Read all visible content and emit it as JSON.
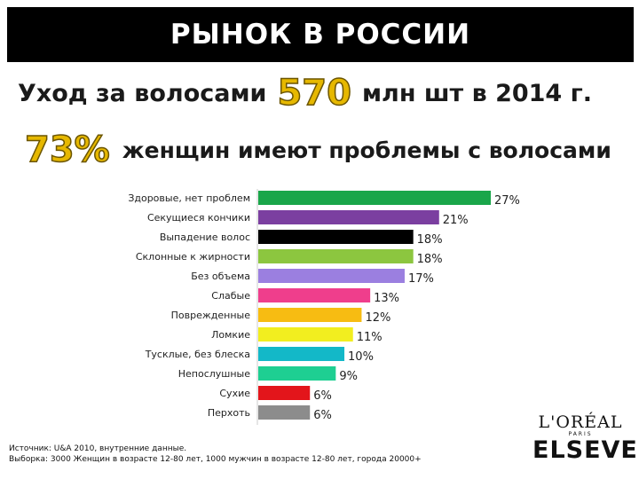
{
  "header": {
    "title": "РЫНОК В РОССИИ"
  },
  "headline1": {
    "prefix": "Уход за волосами",
    "number": "570",
    "suffix": "млн шт в 2014 г."
  },
  "headline2": {
    "number": "73%",
    "text": "женщин имеют проблемы с волосами"
  },
  "chart_data": {
    "type": "bar",
    "orientation": "horizontal",
    "title": "",
    "xlabel": "",
    "ylabel": "",
    "categories": [
      "Здоровые, нет проблем",
      "Секущиеся кончики",
      "Выпадение волос",
      "Склонные к жирности",
      "Без объема",
      "Слабые",
      "Поврежденные",
      "Ломкие",
      "Тусклые, без блеска",
      "Непослушные",
      "Сухие",
      "Перхоть"
    ],
    "values": [
      27,
      21,
      18,
      18,
      17,
      13,
      12,
      11,
      10,
      9,
      6,
      6
    ],
    "value_labels": [
      "27%",
      "21%",
      "18%",
      "18%",
      "17%",
      "13%",
      "12%",
      "11%",
      "10%",
      "9%",
      "6%",
      "6%"
    ],
    "colors": [
      "#1aa64a",
      "#7b3fa0",
      "#000000",
      "#8cc63f",
      "#9b7fe0",
      "#ef3e8c",
      "#f7bc12",
      "#f2ee1f",
      "#13b8c8",
      "#1ecf92",
      "#e3151b",
      "#8c8c8c"
    ],
    "xlim": [
      0,
      27
    ]
  },
  "footnote": {
    "line1": "Источник: U&A 2010, внутренние данные.",
    "line2": "Выборка: 3000 Женщин в возрасте 12-80 лет, 1000 мужчин в возрасте 12-80 лет, города 20000+"
  },
  "logo": {
    "brand": "L'ORÉAL",
    "city": "PARIS",
    "product": "ELSEVE"
  }
}
